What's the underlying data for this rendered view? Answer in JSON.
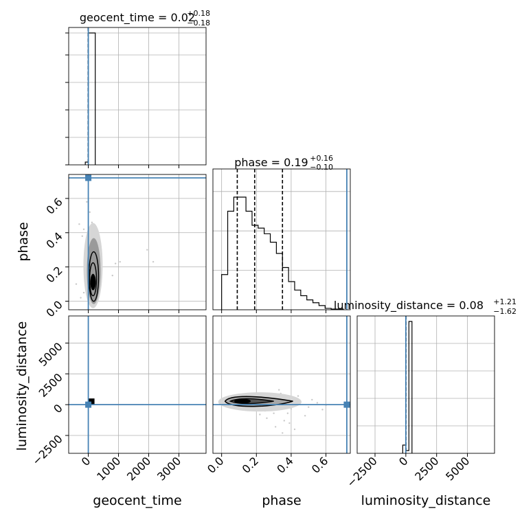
{
  "chart_data": {
    "type": "corner",
    "parameters": [
      "geocent_time",
      "phase",
      "luminosity_distance"
    ],
    "truths": {
      "geocent_time": 0,
      "phase": 0.72,
      "luminosity_distance": 0
    },
    "truth_color": "#4682b4",
    "contour_color": "#000000",
    "titles": {
      "geocent_time": {
        "label": "geocent_time = 0.02",
        "plus": "+0.18",
        "minus": "−0.18"
      },
      "phase": {
        "label": "phase = 0.19",
        "plus": "+0.16",
        "minus": "−0.10"
      },
      "luminosity_distance": {
        "label": "luminosity_distance = 0.08",
        "plus": "+1.21",
        "minus": "−1.62"
      }
    },
    "axis_labels": {
      "geocent_time": "geocent_time",
      "phase": "phase",
      "luminosity_distance": "luminosity_distance"
    },
    "ranges": {
      "geocent_time": [
        -650,
        3900
      ],
      "phase": [
        -0.05,
        0.74
      ],
      "luminosity_distance": [
        -3950,
        7200
      ]
    },
    "ticks": {
      "geocent_time": {
        "values": [
          0,
          1000,
          2000,
          3000
        ],
        "labels": [
          "0",
          "1000",
          "2000",
          "3000"
        ]
      },
      "phase": {
        "values": [
          0.0,
          0.2,
          0.4,
          0.6
        ],
        "labels": [
          "0.0",
          "0.2",
          "0.4",
          "0.6"
        ]
      },
      "luminosity_distance": {
        "values": [
          -2500,
          0,
          2500,
          5000
        ],
        "labels": [
          "−2500",
          "0",
          "2500",
          "5000"
        ]
      }
    },
    "quantiles": {
      "geocent_time": [
        -0.16,
        0.02,
        0.2
      ],
      "phase": [
        0.09,
        0.19,
        0.35
      ],
      "luminosity_distance": [
        -1.54,
        0.08,
        1.29
      ]
    },
    "histograms": {
      "geocent_time": {
        "edges": [
          -100,
          0,
          230
        ],
        "heights": [
          0.02,
          0.96
        ]
      },
      "phase": {
        "edges": [
          0.0,
          0.035,
          0.07,
          0.105,
          0.14,
          0.175,
          0.21,
          0.245,
          0.28,
          0.315,
          0.35,
          0.385,
          0.42,
          0.455,
          0.49,
          0.525,
          0.56,
          0.595,
          0.63,
          0.665,
          0.7
        ],
        "heights": [
          0.25,
          0.7,
          0.8,
          0.8,
          0.7,
          0.6,
          0.58,
          0.54,
          0.48,
          0.4,
          0.3,
          0.2,
          0.14,
          0.1,
          0.07,
          0.05,
          0.03,
          0.01,
          0.005,
          0.005
        ]
      },
      "luminosity_distance": {
        "edges": [
          -250,
          0,
          250,
          500
        ],
        "heights": [
          0.06,
          0.02,
          0.96
        ]
      }
    },
    "grid": true
  }
}
